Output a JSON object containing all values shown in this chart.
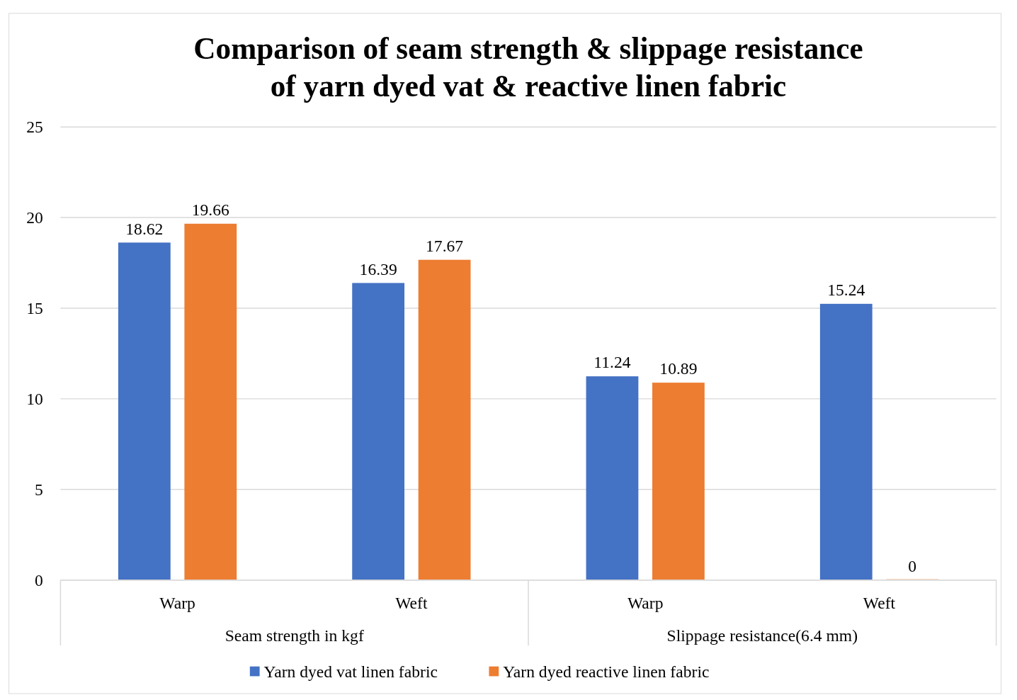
{
  "chart_data": {
    "type": "bar",
    "title": "Comparison of seam strength & slippage resistance of yarn dyed vat & reactive linen fabric",
    "categories": [
      "Warp",
      "Weft",
      "Warp",
      "Weft"
    ],
    "annotations": [
      "Seam strength in kgf",
      "Slippage resistance(6.4 mm)"
    ],
    "series": [
      {
        "name": "Yarn dyed vat linen fabric",
        "color": "#4472c4",
        "values": [
          18.62,
          16.39,
          11.24,
          15.24
        ]
      },
      {
        "name": "Yarn dyed reactive linen fabric",
        "color": "#ed7d31",
        "values": [
          19.66,
          17.67,
          10.89,
          0
        ]
      }
    ],
    "ylim": [
      0,
      25
    ],
    "yticks": [
      0,
      5,
      10,
      15,
      20,
      25
    ],
    "grid": "y",
    "data_labels": true,
    "legend": "bottom"
  }
}
